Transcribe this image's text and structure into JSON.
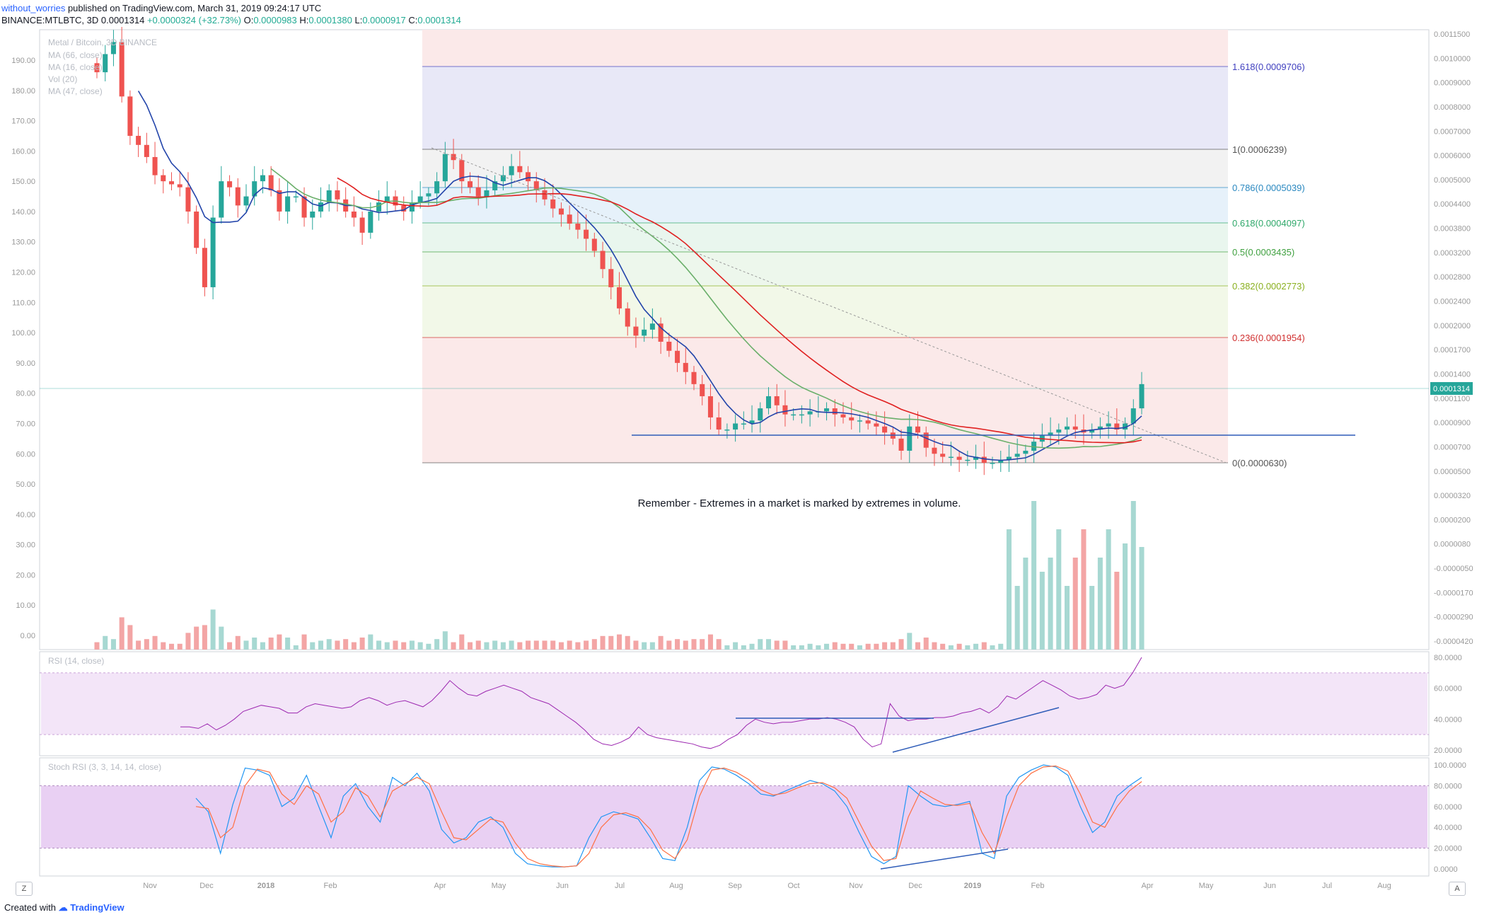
{
  "header": {
    "user": "without_worries",
    "published": "published on TradingView.com, March 31, 2019 09:24:17 UTC",
    "symbol": "BINANCE:MTLBTC, 3D",
    "last": "0.0001314",
    "change": "+0.0000324 (+32.73%)",
    "o_label": "O:",
    "o": "0.0000983",
    "h_label": "H:",
    "h": "0.0001380",
    "l_label": "L:",
    "l": "0.0000917",
    "c_label": "C:",
    "c": "0.0001314"
  },
  "footer": {
    "created_with": "Created with",
    "brand": "TradingView"
  },
  "buttons": {
    "left": "Z",
    "right": "A"
  },
  "colors": {
    "up": "#26a69a",
    "down": "#ef5350",
    "ma_blue": "#2244aa",
    "ma_red": "#e02020",
    "ma_green": "#6aaf6a",
    "rsi": "#9c27b0",
    "stoch_k": "#2196f3",
    "stoch_d": "#ff7043",
    "band": "#e9d7ef"
  },
  "chart_data": [
    {
      "type": "candlestick",
      "title": "Metal / Bitcoin, 3D BINANCE",
      "indicators": [
        "MA (66, close)",
        "MA (16, close)",
        "Vol (20)",
        "MA (47, close)"
      ],
      "x_ticks": [
        "Nov",
        "Dec",
        "2018",
        "Feb",
        "Apr",
        "May",
        "Jun",
        "Jul",
        "Aug",
        "Sep",
        "Oct",
        "Nov",
        "Dec",
        "2019",
        "Feb",
        "Apr",
        "May",
        "Jun",
        "Jul",
        "Aug"
      ],
      "left_axis": [
        "190.00",
        "180.00",
        "170.00",
        "160.00",
        "150.00",
        "140.00",
        "130.00",
        "120.00",
        "110.00",
        "100.00",
        "90.00",
        "80.00",
        "70.00",
        "60.00",
        "50.00",
        "40.00",
        "30.00",
        "20.00",
        "10.00",
        "0.00"
      ],
      "right_axis": [
        "0.0011500",
        "0.0010000",
        "0.0009000",
        "0.0008000",
        "0.0007000",
        "0.0006000",
        "0.0005000",
        "0.0004400",
        "0.0003800",
        "0.0003200",
        "0.0002800",
        "0.0002400",
        "0.0002000",
        "0.0001700",
        "0.0001400",
        "0.0001100",
        "0.0000900",
        "0.0000700",
        "0.0000500",
        "0.0000320",
        "0.0000200",
        "0.0000080",
        "-0.0000050",
        "-0.0000170",
        "-0.0000290",
        "-0.0000420"
      ],
      "last_price": "0.0001314",
      "close_series": [
        186,
        192,
        196,
        178,
        165,
        162,
        158,
        152,
        150,
        149,
        148,
        140,
        128,
        115,
        138,
        150,
        148,
        142,
        145,
        150,
        152,
        147,
        140,
        145,
        145,
        138,
        140,
        143,
        147,
        144,
        140,
        138,
        133,
        140,
        143,
        145,
        142,
        140,
        143,
        145,
        146,
        150,
        159,
        157,
        150,
        148,
        145,
        147,
        150,
        152,
        155,
        153,
        150,
        147,
        144,
        141,
        139,
        136,
        134,
        131,
        127,
        121,
        115,
        108,
        102,
        99,
        101,
        103,
        97,
        94,
        90,
        87,
        83,
        79,
        72,
        68,
        68,
        70,
        70,
        71,
        75,
        79,
        76,
        73,
        73,
        73,
        74,
        74,
        75,
        73,
        72,
        71,
        71,
        70,
        69,
        67,
        65,
        61,
        69,
        67,
        62,
        60,
        59,
        59,
        58,
        58,
        59,
        57,
        57,
        58,
        59,
        60,
        61,
        64,
        66,
        67,
        68,
        69,
        68,
        67,
        68,
        69,
        70,
        68,
        70,
        75,
        83
      ],
      "fibonacci": [
        {
          "label": "1.618(0.0009706)",
          "color": "#3f3fbf"
        },
        {
          "label": "1(0.0006239)",
          "color": "#555555"
        },
        {
          "label": "0.786(0.0005039)",
          "color": "#2a88c0"
        },
        {
          "label": "0.618(0.0004097)",
          "color": "#2fa86a"
        },
        {
          "label": "0.5(0.0003435)",
          "color": "#3fa03f"
        },
        {
          "label": "0.382(0.0002773)",
          "color": "#8ab020"
        },
        {
          "label": "0.236(0.0001954)",
          "color": "#d02f2f"
        },
        {
          "label": "0(0.0000630)",
          "color": "#555555"
        }
      ],
      "annotation": "Remember - Extremes in a market is marked by extremes in volume."
    },
    {
      "type": "line",
      "title": "RSI (14, close)",
      "right_axis": [
        "80.0000",
        "60.0000",
        "40.0000",
        "20.0000"
      ],
      "band": [
        30,
        70
      ],
      "values": [
        35,
        35,
        34,
        37,
        33,
        36,
        40,
        45,
        47,
        49,
        48,
        47,
        44,
        44,
        48,
        50,
        49,
        48,
        47,
        48,
        52,
        54,
        52,
        49,
        51,
        52,
        50,
        48,
        52,
        58,
        65,
        60,
        56,
        55,
        58,
        60,
        62,
        60,
        58,
        54,
        52,
        50,
        46,
        42,
        38,
        33,
        27,
        24,
        23,
        25,
        28,
        35,
        30,
        28,
        27,
        26,
        25,
        24,
        22,
        21,
        23,
        27,
        30,
        36,
        40,
        38,
        37,
        38,
        38,
        39,
        40,
        40,
        41,
        40,
        38,
        35,
        27,
        22,
        24,
        50,
        42,
        39,
        40,
        40,
        41,
        41,
        42,
        44,
        45,
        47,
        44,
        48,
        55,
        53,
        57,
        61,
        65,
        62,
        59,
        55,
        53,
        54,
        56,
        62,
        60,
        62,
        70,
        80
      ]
    },
    {
      "type": "line",
      "title": "Stoch RSI (3, 3, 14, 14, close)",
      "right_axis": [
        "100.0000",
        "80.0000",
        "60.0000",
        "40.0000",
        "20.0000",
        "0.0000"
      ],
      "band": [
        20,
        80
      ],
      "series": [
        {
          "name": "K",
          "values": [
            68,
            55,
            15,
            62,
            97,
            95,
            90,
            60,
            68,
            90,
            60,
            30,
            70,
            82,
            60,
            45,
            88,
            80,
            92,
            75,
            38,
            25,
            30,
            45,
            50,
            40,
            15,
            5,
            3,
            2,
            2,
            3,
            30,
            50,
            55,
            52,
            48,
            30,
            10,
            8,
            40,
            85,
            98,
            96,
            90,
            82,
            72,
            70,
            75,
            80,
            85,
            82,
            75,
            60,
            35,
            12,
            5,
            12,
            80,
            70,
            62,
            60,
            62,
            65,
            15,
            10,
            70,
            88,
            95,
            100,
            98,
            90,
            60,
            35,
            45,
            70,
            80,
            88
          ]
        },
        {
          "name": "D",
          "values": [
            60,
            58,
            30,
            40,
            80,
            96,
            93,
            72,
            62,
            80,
            72,
            45,
            55,
            78,
            70,
            50,
            75,
            82,
            88,
            82,
            55,
            30,
            28,
            38,
            48,
            45,
            25,
            10,
            5,
            3,
            2,
            3,
            15,
            40,
            52,
            54,
            50,
            38,
            18,
            10,
            28,
            70,
            95,
            97,
            93,
            86,
            76,
            71,
            73,
            78,
            82,
            83,
            78,
            68,
            45,
            22,
            8,
            10,
            50,
            75,
            68,
            62,
            61,
            63,
            35,
            15,
            50,
            80,
            92,
            98,
            99,
            94,
            72,
            45,
            40,
            60,
            75,
            84
          ]
        }
      ]
    }
  ]
}
